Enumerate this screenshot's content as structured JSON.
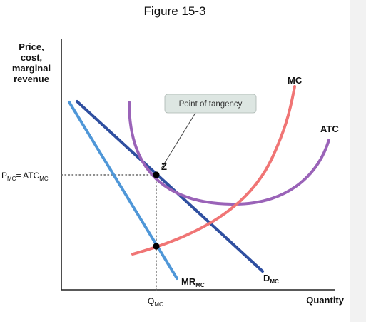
{
  "figure": {
    "title": "Figure 15-3"
  },
  "chart_data": {
    "type": "line",
    "title": "Figure 15-3",
    "xlabel": "Quantity",
    "ylabel_lines": [
      "Price,",
      "cost,",
      "marginal",
      "revenue"
    ],
    "axis_ticks": {
      "x": {
        "main": "Q",
        "sub": "MC"
      },
      "y": {
        "main1": "P",
        "sub1": "MC",
        "mid": "= ATC",
        "sub2": "MC"
      }
    },
    "curves": [
      {
        "id": "mc",
        "label": "MC",
        "color": "#f07575"
      },
      {
        "id": "atc",
        "label": "ATC",
        "color": "#9a63b8"
      },
      {
        "id": "demand",
        "label_main": "D",
        "label_sub": "MC",
        "color": "#2f4fa0"
      },
      {
        "id": "mr",
        "label_main": "MR",
        "label_sub": "MC",
        "color": "#4f97d8"
      }
    ],
    "points": [
      {
        "id": "z",
        "label": "Z"
      },
      {
        "id": "mr-mc",
        "label": ""
      }
    ],
    "annotation": {
      "text": "Point of tangency"
    },
    "colors": {
      "axis": "#222222",
      "dotted": "#666666",
      "callout_bg": "#dde6e2",
      "callout_border": "#aab5b0",
      "side_panel": "#f2f2f2"
    }
  }
}
